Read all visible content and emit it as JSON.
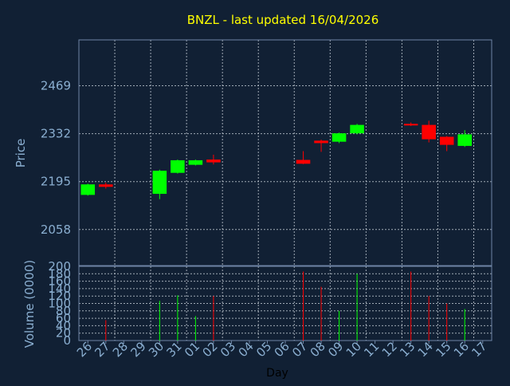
{
  "chart_data": [
    {
      "type": "candlestick",
      "title": "BNZL - last updated 16/04/2026",
      "ylabel": "Price",
      "xlabel": "",
      "ylim": [
        1955,
        2600
      ],
      "yticks": [
        2058,
        2195,
        2332,
        2469
      ],
      "yticklabels": [
        "2058",
        "2195",
        "2332",
        "2469"
      ],
      "grid": true,
      "colors": {
        "up": "#00ff00",
        "down": "#ff0000",
        "background": "#112034",
        "title": "#ffff00",
        "label": "#8aaed0"
      },
      "candles": [
        {
          "day": "26",
          "open": 2157,
          "close": 2187,
          "high": 2189,
          "low": 2155
        },
        {
          "day": "27",
          "open": 2187,
          "close": 2180,
          "high": 2192,
          "low": 2175
        },
        {
          "day": "30",
          "open": 2160,
          "close": 2226,
          "high": 2229,
          "low": 2145
        },
        {
          "day": "31",
          "open": 2220,
          "close": 2256,
          "high": 2258,
          "low": 2218
        },
        {
          "day": "01",
          "open": 2243,
          "close": 2256,
          "high": 2258,
          "low": 2241
        },
        {
          "day": "02",
          "open": 2258,
          "close": 2250,
          "high": 2272,
          "low": 2244
        },
        {
          "day": "07",
          "open": 2257,
          "close": 2246,
          "high": 2282,
          "low": 2245
        },
        {
          "day": "08",
          "open": 2312,
          "close": 2305,
          "high": 2315,
          "low": 2280
        },
        {
          "day": "09",
          "open": 2309,
          "close": 2333,
          "high": 2335,
          "low": 2305
        },
        {
          "day": "10",
          "open": 2333,
          "close": 2357,
          "high": 2360,
          "low": 2330
        },
        {
          "day": "13",
          "open": 2360,
          "close": 2357,
          "high": 2364,
          "low": 2354
        },
        {
          "day": "14",
          "open": 2357,
          "close": 2316,
          "high": 2369,
          "low": 2307
        },
        {
          "day": "15",
          "open": 2323,
          "close": 2300,
          "high": 2325,
          "low": 2282
        },
        {
          "day": "16",
          "open": 2297,
          "close": 2330,
          "high": 2342,
          "low": 2294
        }
      ]
    },
    {
      "type": "bar",
      "ylabel": "Volume (0000)",
      "xlabel": "Day",
      "ylim": [
        0,
        200
      ],
      "yticks": [
        0,
        20,
        40,
        60,
        80,
        100,
        120,
        140,
        160,
        180,
        200
      ],
      "yticklabels": [
        "0",
        "20",
        "40",
        "60",
        "80",
        "100",
        "120",
        "140",
        "160",
        "180",
        "200"
      ],
      "categories": [
        "26",
        "27",
        "28",
        "29",
        "30",
        "31",
        "01",
        "02",
        "03",
        "04",
        "05",
        "06",
        "07",
        "08",
        "09",
        "10",
        "11",
        "12",
        "13",
        "14",
        "15",
        "16",
        "17"
      ],
      "grid": true,
      "bars": [
        {
          "day": "27",
          "value": 55,
          "direction": "down"
        },
        {
          "day": "30",
          "value": 107,
          "direction": "up"
        },
        {
          "day": "31",
          "value": 122,
          "direction": "up"
        },
        {
          "day": "01",
          "value": 66,
          "direction": "up"
        },
        {
          "day": "02",
          "value": 120,
          "direction": "down"
        },
        {
          "day": "07",
          "value": 186,
          "direction": "down"
        },
        {
          "day": "08",
          "value": 145,
          "direction": "down"
        },
        {
          "day": "09",
          "value": 80,
          "direction": "up"
        },
        {
          "day": "10",
          "value": 180,
          "direction": "up"
        },
        {
          "day": "13",
          "value": 186,
          "direction": "down"
        },
        {
          "day": "14",
          "value": 120,
          "direction": "down"
        },
        {
          "day": "15",
          "value": 100,
          "direction": "down"
        },
        {
          "day": "16",
          "value": 85,
          "direction": "up"
        }
      ]
    }
  ]
}
